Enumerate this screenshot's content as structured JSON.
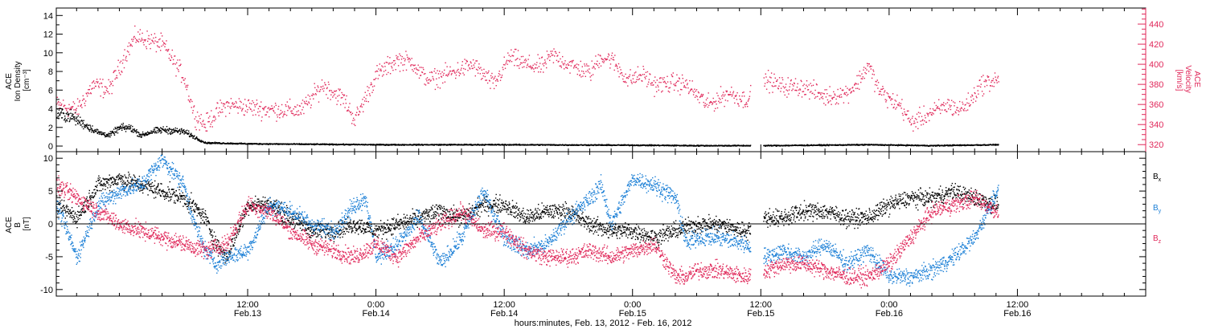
{
  "colors": {
    "black": "#000000",
    "blue": "#1b7fd6",
    "magenta": "#e0285a",
    "axis": "#000000"
  },
  "x_axis": {
    "title": "hours:minutes, Feb. 13, 2012 - Feb. 16, 2012",
    "range_hours": [
      -5.9,
      96.0
    ],
    "ticks": [
      {
        "hour": 12,
        "time": "12:00",
        "date": "Feb.13"
      },
      {
        "hour": 24,
        "time": "0:00",
        "date": "Feb.14"
      },
      {
        "hour": 36,
        "time": "12:00",
        "date": "Feb.14"
      },
      {
        "hour": 48,
        "time": "0:00",
        "date": "Feb.15"
      },
      {
        "hour": 60,
        "time": "12:00",
        "date": "Feb.15"
      },
      {
        "hour": 72,
        "time": "0:00",
        "date": "Feb.16"
      },
      {
        "hour": 84,
        "time": "12:00",
        "date": "Feb.16"
      }
    ]
  },
  "panels": {
    "top": {
      "left_label_lines": [
        "ACE",
        "Ion Density",
        "[cm⁻³]"
      ],
      "right_label_lines": [
        "ACE",
        "Velocity",
        "[km/s]"
      ],
      "left_ticks": [
        "0",
        "2",
        "4",
        "6",
        "8",
        "10",
        "12",
        "14"
      ],
      "right_ticks": [
        "320",
        "340",
        "360",
        "380",
        "400",
        "420",
        "440"
      ]
    },
    "bottom": {
      "left_label_lines": [
        "ACE",
        "B",
        "[nT]"
      ],
      "left_ticks": [
        "-10",
        "-5",
        "0",
        "5",
        "10"
      ],
      "legend": [
        {
          "base": "B",
          "sub": "x",
          "color": "#000000"
        },
        {
          "base": "B",
          "sub": "y",
          "color": "#1b7fd6"
        },
        {
          "base": "B",
          "sub": "z",
          "color": "#e0285a"
        }
      ]
    }
  },
  "chart_data": [
    {
      "type": "scatter",
      "ylabel": "ACE Ion Density [cm⁻³]",
      "ylim": [
        -0.6,
        14.8
      ],
      "y2label": "ACE Velocity [km/s]",
      "y2lim": [
        313,
        456
      ],
      "gaps_hours": [
        [
          59.0,
          60.2
        ],
        [
          82.2,
          96.0
        ]
      ],
      "series": [
        {
          "name": "Ion Density",
          "axis": "left",
          "color": "#000000",
          "x_hours": [
            -5.9,
            -4.5,
            -3.5,
            -2,
            -1,
            0,
            1,
            2,
            3,
            4,
            5,
            6,
            8,
            12,
            24,
            36,
            48,
            54,
            58.5,
            60.5,
            70,
            76,
            82
          ],
          "y": [
            3.5,
            3.2,
            2.5,
            1.5,
            1.2,
            2.0,
            2.0,
            1.2,
            1.6,
            1.8,
            1.7,
            1.6,
            0.4,
            0.3,
            0.2,
            0.2,
            0.15,
            0.1,
            0.1,
            0.1,
            0.2,
            0.1,
            0.2
          ]
        },
        {
          "name": "Velocity",
          "axis": "right",
          "color": "#e0285a",
          "x_hours": [
            -5.9,
            -4,
            -2.5,
            -1,
            0.5,
            1.5,
            2.5,
            4,
            6,
            7,
            8,
            9,
            10,
            12,
            14,
            17,
            19,
            21,
            22,
            24,
            26,
            27.5,
            28,
            29,
            31,
            33,
            35,
            36.5,
            38,
            39.5,
            40.5,
            42,
            44,
            45,
            46,
            47.5,
            49,
            50,
            52,
            53,
            55,
            57,
            58.5,
            60.5,
            62,
            64,
            66,
            67,
            68,
            69,
            70,
            71,
            72,
            73,
            74,
            75.5,
            76.5,
            77.5,
            78.5,
            79.5,
            80.5,
            82
          ],
          "y": [
            360,
            355,
            380,
            375,
            410,
            428,
            425,
            420,
            388,
            350,
            340,
            352,
            360,
            358,
            355,
            355,
            380,
            365,
            345,
            390,
            405,
            402,
            392,
            385,
            392,
            400,
            380,
            408,
            400,
            398,
            410,
            400,
            392,
            408,
            405,
            385,
            390,
            380,
            382,
            380,
            360,
            372,
            365,
            385,
            378,
            378,
            368,
            370,
            372,
            382,
            400,
            375,
            365,
            360,
            342,
            350,
            355,
            360,
            355,
            363,
            380,
            385
          ]
        }
      ]
    },
    {
      "type": "scatter",
      "ylabel": "ACE B [nT]",
      "ylim": [
        -11,
        11
      ],
      "gaps_hours": [
        [
          59.0,
          60.2
        ],
        [
          82.2,
          96.0
        ]
      ],
      "series": [
        {
          "name": "Bx",
          "color": "#000000",
          "x_hours": [
            -5.9,
            -4,
            -2,
            0,
            2,
            4,
            6,
            8,
            9,
            10,
            12,
            14,
            16,
            18,
            20,
            22,
            24,
            26,
            28,
            30,
            32,
            34,
            36,
            38,
            40,
            42,
            44,
            46,
            48,
            50,
            52,
            54,
            56,
            58.5,
            60.5,
            62,
            64,
            66,
            68,
            70,
            72,
            74,
            76,
            78,
            80,
            82
          ],
          "y": [
            3,
            1,
            6,
            7,
            6,
            5,
            4,
            1,
            -3,
            -5,
            3,
            3,
            1,
            -1,
            -1,
            0,
            -1,
            0,
            1,
            2,
            1,
            3,
            3,
            1,
            2,
            2,
            0,
            -1,
            -1,
            -2,
            -1,
            0,
            0,
            -1,
            1,
            1,
            2,
            2,
            1,
            1,
            3,
            4,
            4,
            5,
            4,
            3
          ]
        },
        {
          "name": "By",
          "color": "#1b7fd6",
          "x_hours": [
            -5.9,
            -4,
            -2,
            0,
            2,
            4,
            6,
            7,
            8,
            9,
            10,
            12,
            14,
            16,
            18,
            20,
            22,
            23,
            24,
            26,
            28,
            30,
            32,
            34,
            36,
            38,
            40,
            42,
            44,
            45,
            46,
            48,
            50,
            52,
            53,
            54,
            56,
            58.5,
            60.5,
            62,
            64,
            66,
            68,
            70,
            72,
            74,
            76,
            78,
            80,
            82
          ],
          "y": [
            3,
            -5,
            3,
            5,
            6,
            10,
            6,
            0,
            -4,
            -6,
            -5,
            -4,
            3,
            2,
            0,
            -1,
            3,
            4,
            -5,
            -3,
            1,
            -6,
            -2,
            5,
            -2,
            -4,
            -3,
            1,
            4,
            6,
            0,
            7,
            6,
            4,
            -3,
            -2,
            -2,
            -3,
            -5,
            -4,
            -5,
            -3,
            -6,
            -4,
            -8,
            -8,
            -7,
            -5,
            -2,
            5
          ]
        },
        {
          "name": "Bz",
          "color": "#e0285a",
          "x_hours": [
            -5.9,
            -4,
            -2,
            0,
            2,
            4,
            6,
            8,
            10,
            12,
            14,
            16,
            18,
            20,
            22,
            24,
            26,
            28,
            30,
            32,
            34,
            36,
            38,
            40,
            42,
            44,
            46,
            48,
            50,
            52,
            53,
            54,
            56,
            58.5,
            60.5,
            62,
            64,
            66,
            68,
            70,
            72,
            74,
            76,
            78,
            80,
            82
          ],
          "y": [
            6,
            4,
            2,
            0,
            -1,
            -2,
            -3,
            -4,
            -3,
            3,
            2,
            -1,
            -3,
            -4,
            -5,
            -3,
            -5,
            -2,
            0,
            2,
            -1,
            -1,
            -4,
            -5,
            -5,
            -4,
            -5,
            -4,
            -3,
            -8,
            -8,
            -7,
            -7,
            -8,
            -7,
            -6,
            -6,
            -7,
            -8,
            -8,
            -6,
            -2,
            2,
            3,
            4,
            2
          ]
        }
      ]
    }
  ]
}
